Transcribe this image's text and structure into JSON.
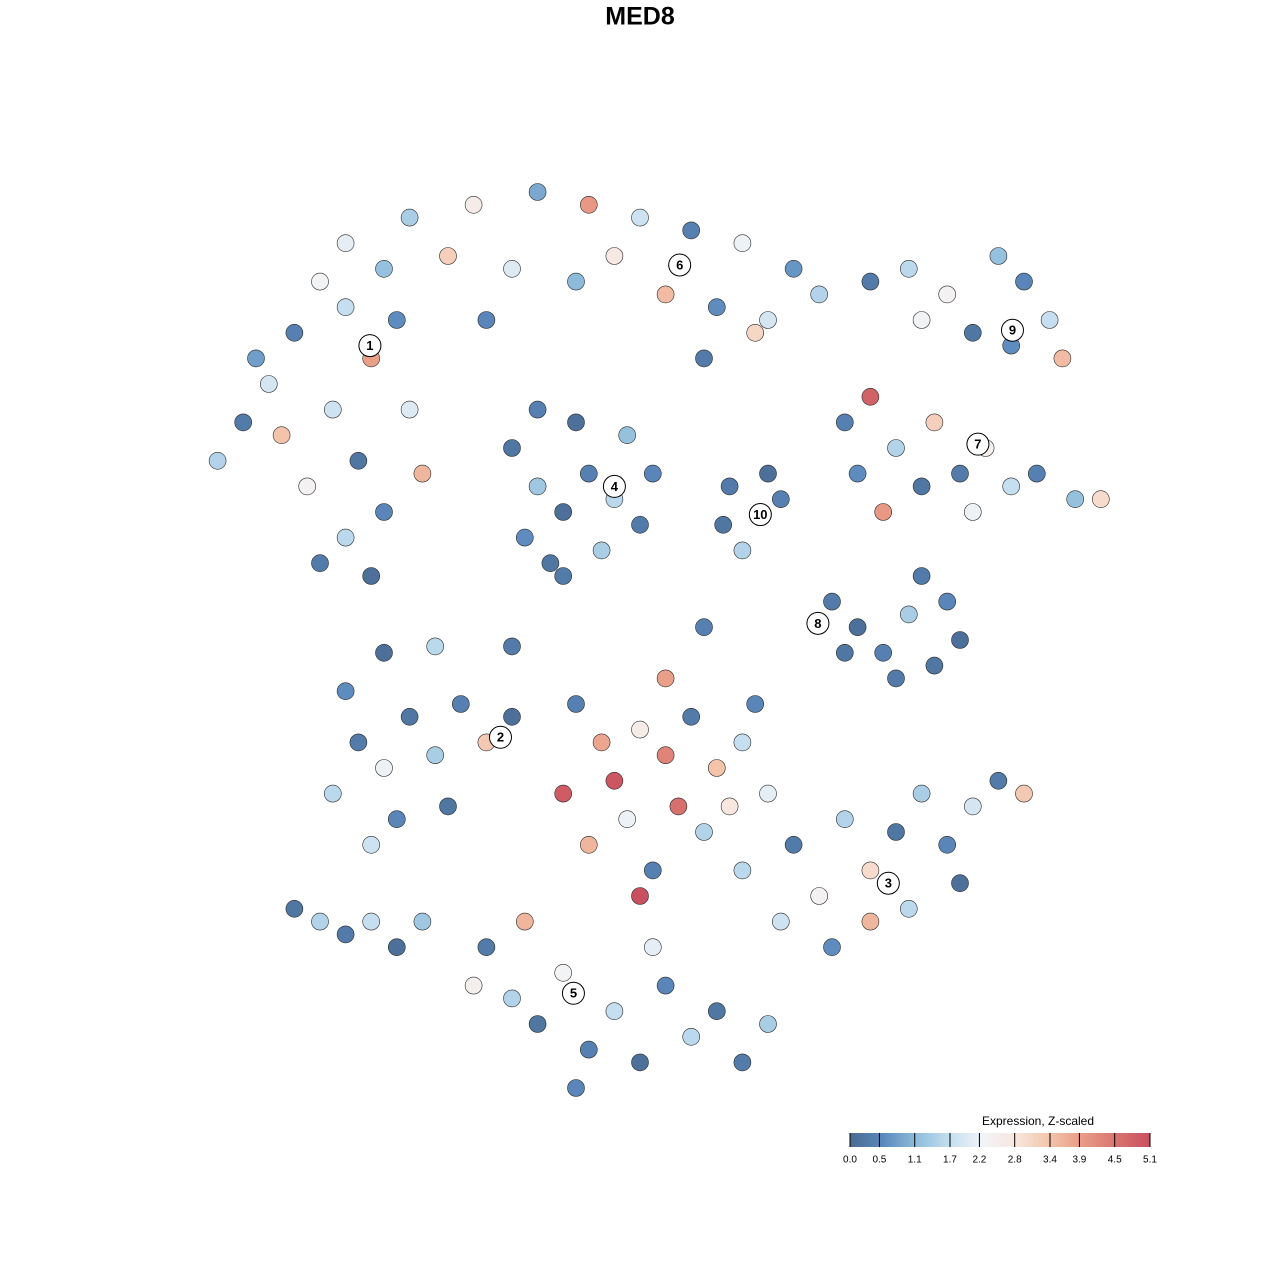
{
  "chart_data": {
    "type": "scatter",
    "title": "MED8",
    "xlim": [
      -50,
      50
    ],
    "ylim": [
      -50,
      50
    ],
    "x": [
      -33,
      -31,
      -29,
      -27,
      -25,
      -23,
      -21,
      -19,
      -24,
      -22,
      -26,
      -20,
      -23,
      -25,
      -21,
      -28,
      -18,
      -20,
      -30,
      -17,
      -23,
      -18,
      -13,
      -8,
      -4,
      0,
      4,
      8,
      12,
      14,
      -15,
      -10,
      -5,
      2,
      6,
      10,
      -2,
      -12,
      5,
      9,
      -10,
      -8,
      -6,
      -4,
      -2,
      0,
      -9,
      -7,
      -3,
      1,
      -5,
      -1,
      -6,
      -8,
      9.4,
      7,
      10,
      8,
      11,
      6.5,
      18,
      21,
      24,
      28,
      30,
      32,
      26,
      22,
      33,
      29,
      16,
      18,
      20,
      23,
      25,
      27,
      29,
      31,
      34,
      36,
      22,
      26,
      19,
      17,
      15,
      17,
      19,
      21,
      23,
      25,
      20,
      24,
      16,
      22,
      -24,
      -22,
      -20,
      -18,
      -16,
      -14,
      -12,
      -10,
      -19,
      -21,
      -15,
      -23,
      -5,
      -3,
      -2,
      0,
      2,
      4,
      6,
      8,
      -1,
      3,
      5,
      7,
      -4,
      1,
      9,
      10,
      -6,
      2,
      0,
      8,
      12,
      14,
      16,
      18,
      20,
      22,
      24,
      26,
      28,
      30,
      18,
      15,
      11,
      25,
      21,
      -12,
      -10,
      -8,
      -6,
      -4,
      -2,
      0,
      2,
      4,
      6,
      8,
      -5,
      1,
      -9,
      -13,
      10,
      -27,
      -25,
      -23,
      -21,
      -19,
      -17,
      -16,
      -10,
      5,
      -20
    ],
    "values": [
      14,
      17,
      20,
      24,
      28,
      26,
      22,
      25,
      18,
      14,
      12,
      10,
      8,
      6,
      5,
      16,
      18,
      29,
      22,
      13,
      31,
      33,
      34,
      35,
      34,
      33,
      32,
      31,
      29,
      27,
      30,
      29,
      28,
      27,
      26,
      25,
      30,
      25,
      22,
      24,
      15,
      12,
      10,
      13,
      11,
      9,
      8,
      6,
      7,
      13,
      17,
      16,
      5,
      18,
      9.6,
      12,
      13,
      7,
      11,
      9,
      28,
      29,
      27,
      30,
      28,
      25,
      24,
      25,
      22,
      23,
      17,
      19,
      15,
      17,
      13,
      15,
      12,
      13,
      11,
      11,
      12,
      10,
      10,
      13,
      3,
      1,
      -1,
      2,
      -2,
      0,
      -3,
      3,
      -1,
      5,
      -12,
      -8,
      -10,
      -6,
      -9,
      -5,
      -8,
      -6,
      -14,
      -16,
      -13,
      -4,
      -5,
      -8,
      -11,
      -7,
      -9,
      -6,
      -10,
      -8,
      -14,
      -13,
      -15,
      -13,
      -16,
      -18,
      -5,
      -12,
      -12,
      -3,
      -20,
      -18,
      -16,
      -20,
      -14,
      -18,
      -15,
      -12,
      -16,
      -13,
      -11,
      -12,
      -22,
      -24,
      -22,
      -19,
      -21,
      -24,
      -28,
      -30,
      -26,
      -32,
      -29,
      -33,
      -27,
      -31,
      -29,
      -33,
      -35,
      -24,
      -22,
      -27,
      -30,
      -21,
      -22,
      -23,
      -22,
      -24,
      -22,
      -0.5,
      -0.5,
      1,
      -1
    ],
    "expression": [
      1.5,
      0.3,
      1.9,
      0.4,
      2.3,
      1.7,
      3.9,
      0.6,
      1.8,
      0.2,
      2.4,
      0.5,
      1.6,
      0.3,
      0.1,
      3.4,
      2.0,
      1.2,
      0.8,
      3.6,
      2.1,
      1.4,
      2.6,
      0.9,
      4.0,
      1.8,
      0.4,
      2.2,
      0.7,
      1.5,
      3.2,
      2.0,
      1.1,
      3.5,
      0.6,
      1.9,
      2.7,
      0.5,
      0.3,
      3.1,
      0.2,
      1.3,
      0.1,
      0.4,
      1.6,
      0.3,
      0.6,
      0.2,
      1.4,
      0.5,
      0.1,
      1.2,
      0.3,
      0.4,
      2.2,
      0.3,
      0.1,
      1.5,
      0.4,
      0.2,
      0.3,
      1.6,
      2.4,
      1.2,
      0.5,
      1.7,
      0.2,
      2.3,
      3.5,
      0.6,
      0.4,
      4.8,
      1.5,
      3.2,
      0.3,
      2.5,
      1.7,
      0.4,
      1.2,
      3.0,
      0.2,
      2.2,
      4.0,
      0.6,
      0.3,
      0.1,
      0.4,
      1.4,
      0.2,
      0.1,
      0.3,
      0.5,
      0.2,
      0.3,
      1.6,
      0.3,
      2.2,
      0.2,
      1.4,
      0.4,
      3.3,
      0.1,
      0.5,
      1.8,
      0.2,
      0.6,
      0.4,
      3.8,
      5.0,
      2.6,
      4.3,
      0.3,
      3.4,
      1.7,
      2.2,
      4.6,
      1.5,
      2.8,
      3.6,
      0.4,
      0.5,
      2.1,
      4.9,
      3.9,
      5.1,
      1.6,
      0.3,
      2.4,
      1.5,
      3.0,
      0.2,
      1.4,
      0.5,
      1.9,
      0.3,
      3.3,
      3.6,
      0.6,
      1.8,
      0.1,
      1.6,
      0.3,
      1.5,
      0.2,
      2.3,
      0.4,
      1.7,
      0.1,
      0.5,
      1.6,
      0.2,
      0.3,
      0.5,
      2.1,
      3.6,
      2.5,
      1.4,
      0.2,
      1.5,
      0.3,
      1.7,
      0.1,
      1.3,
      1.6,
      0.3,
      0.4,
      0.1
    ],
    "clusters": [
      {
        "label": "1",
        "x": -21.1,
        "y": 23.0
      },
      {
        "label": "6",
        "x": 3.1,
        "y": 29.3
      },
      {
        "label": "4",
        "x": -2.0,
        "y": 12.0
      },
      {
        "label": "10",
        "x": 9.4,
        "y": 9.8
      },
      {
        "label": "9",
        "x": 29.1,
        "y": 24.2
      },
      {
        "label": "7",
        "x": 26.4,
        "y": 15.3
      },
      {
        "label": "8",
        "x": 13.9,
        "y": 1.3
      },
      {
        "label": "2",
        "x": -10.9,
        "y": -7.6
      },
      {
        "label": "3",
        "x": 19.4,
        "y": -19.0
      },
      {
        "label": "5",
        "x": -5.2,
        "y": -27.6
      }
    ],
    "legend_title": "Expression, Z-scaled",
    "clim": [
      0,
      5.1
    ],
    "color_stops": [
      "#4a6b93",
      "#5b89bd",
      "#8fbddc",
      "#c5dff0",
      "#f2f4f7",
      "#f8e6dc",
      "#f3c3aa",
      "#e99a85",
      "#d9736f",
      "#c9505f"
    ],
    "cticks": [
      {
        "value": 0,
        "label": "0.0"
      },
      0.5,
      1.1,
      1.7,
      2.2,
      2.8,
      3.4,
      3.9,
      4.5,
      5.1
    ]
  }
}
